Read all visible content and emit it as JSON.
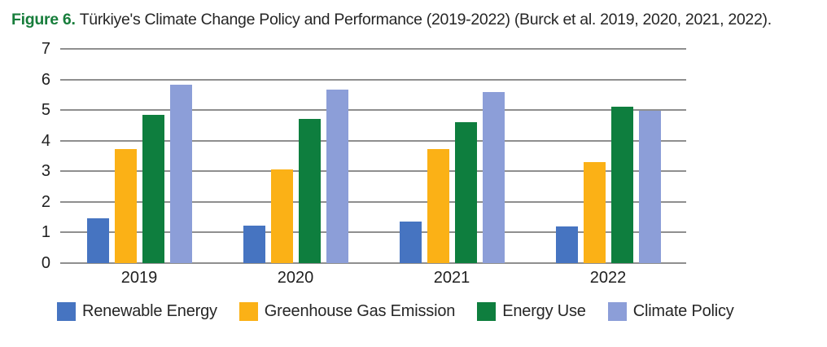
{
  "caption": {
    "label": "Figure 6.",
    "text": "Türkiye's Climate Change Policy and Performance (2019-2022) (Burck et al. 2019, 2020, 2021, 2022)."
  },
  "chart_data": {
    "type": "bar",
    "title": "Figure 6. Türkiye's Climate Change Policy and Performance (2019-2022) (Burck et al. 2019, 2020, 2021, 2022).",
    "xlabel": "",
    "ylabel": "",
    "categories": [
      "2019",
      "2020",
      "2021",
      "2022"
    ],
    "series": [
      {
        "name": "Renewable Energy",
        "color": "#4674C1",
        "values": [
          1.47,
          1.23,
          1.37,
          1.19
        ]
      },
      {
        "name": "Greenhouse Gas Emission",
        "color": "#FBB116",
        "values": [
          3.72,
          3.07,
          3.73,
          3.29
        ]
      },
      {
        "name": "Energy Use",
        "color": "#0E7E3E",
        "values": [
          4.86,
          4.72,
          4.62,
          5.12
        ]
      },
      {
        "name": "Climate Policy",
        "color": "#8C9ED8",
        "values": [
          5.84,
          5.67,
          5.58,
          4.97
        ]
      }
    ],
    "ylim": [
      0,
      7
    ],
    "yticks": [
      0,
      1,
      2,
      3,
      4,
      5,
      6,
      7
    ],
    "grid": true,
    "legend_position": "bottom"
  },
  "colors": {
    "caption_label": "#177D3B",
    "text": "#262626",
    "gridline": "#8F8F8F"
  }
}
